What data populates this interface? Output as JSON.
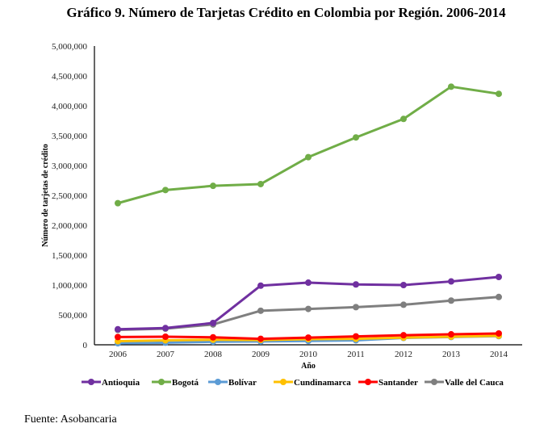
{
  "title": "Gráfico 9. Número de Tarjetas Crédito en Colombia por Región. 2006-2014",
  "source": "Fuente: Asobancaria",
  "chart_data": {
    "type": "line",
    "title": "Gráfico 9. Número de Tarjetas Crédito en Colombia por Región. 2006-2014",
    "xlabel": "Año",
    "ylabel": "Número de tarjetas de crédito",
    "x": [
      "2006",
      "2007",
      "2008",
      "2009",
      "2010",
      "2011",
      "2012",
      "2013",
      "2014"
    ],
    "ylim": [
      0,
      5000000
    ],
    "yticks": [
      0,
      500000,
      1000000,
      1500000,
      2000000,
      2500000,
      3000000,
      3500000,
      4000000,
      4500000,
      5000000
    ],
    "ytick_labels": [
      "0",
      "500,000",
      "1,000,000",
      "1,500,000",
      "2,000,000",
      "2,500,000",
      "3,000,000",
      "3,500,000",
      "4,000,000",
      "4,500,000",
      "5,000,000"
    ],
    "grid": false,
    "legend_position": "bottom",
    "series": [
      {
        "name": "Antioquia",
        "color": "#7030a0",
        "values": [
          260000,
          280000,
          365000,
          990000,
          1040000,
          1010000,
          1000000,
          1060000,
          1135000
        ]
      },
      {
        "name": "Bogotá",
        "color": "#70ad47",
        "values": [
          2370000,
          2590000,
          2660000,
          2690000,
          3140000,
          3470000,
          3780000,
          4320000,
          4200000
        ]
      },
      {
        "name": "Bolívar",
        "color": "#5b9bd5",
        "values": [
          25000,
          35000,
          50000,
          55000,
          65000,
          75000,
          115000,
          130000,
          145000
        ]
      },
      {
        "name": "Cundinamarca",
        "color": "#ffc000",
        "values": [
          60000,
          75000,
          85000,
          80000,
          95000,
          100000,
          120000,
          135000,
          150000
        ]
      },
      {
        "name": "Santander",
        "color": "#ff0000",
        "values": [
          130000,
          135000,
          125000,
          100000,
          120000,
          140000,
          160000,
          175000,
          190000
        ]
      },
      {
        "name": "Valle del Cauca",
        "color": "#7f7f7f",
        "values": [
          250000,
          270000,
          340000,
          570000,
          600000,
          630000,
          670000,
          740000,
          800000
        ]
      }
    ]
  }
}
